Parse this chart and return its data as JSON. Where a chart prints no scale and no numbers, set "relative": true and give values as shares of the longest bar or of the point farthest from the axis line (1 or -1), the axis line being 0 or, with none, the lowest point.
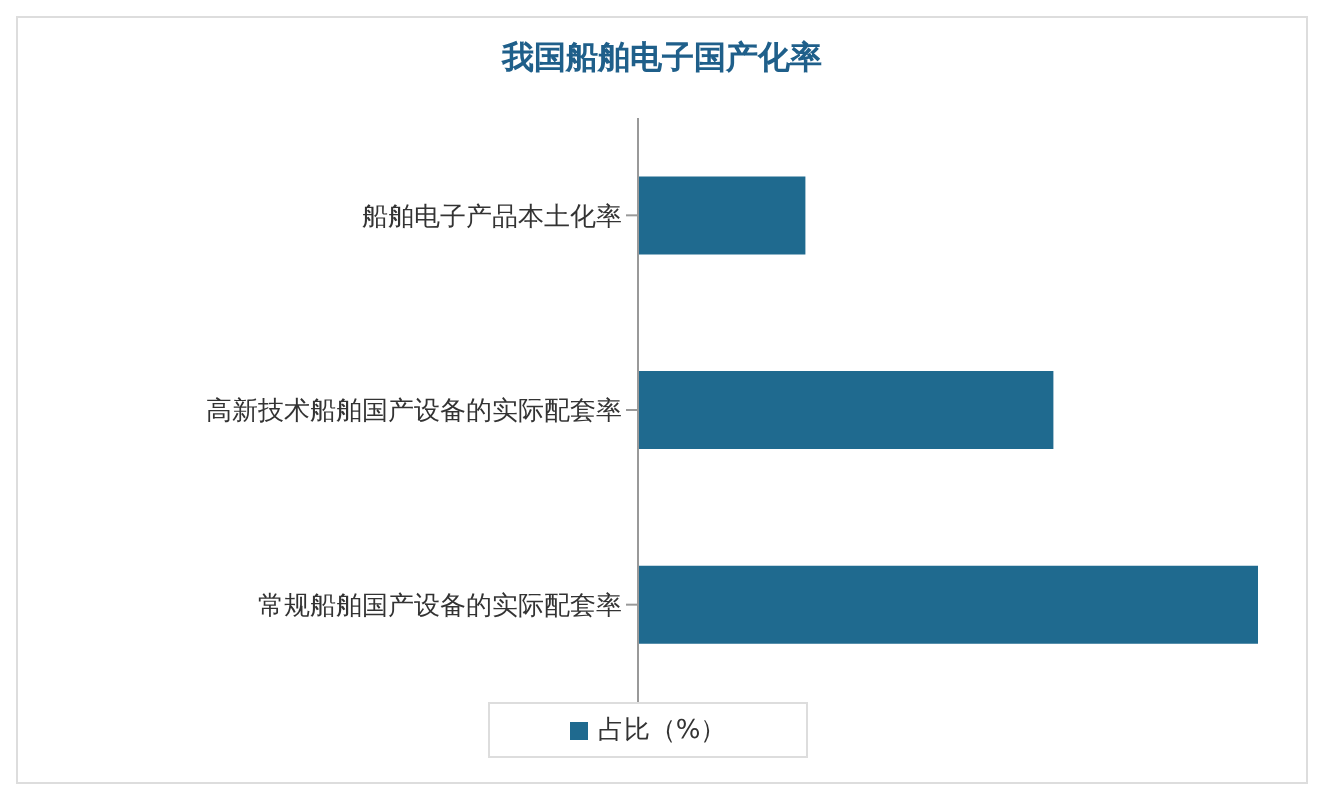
{
  "chart_data": {
    "type": "bar",
    "title": "我国船舶电子国产化率",
    "orientation": "horizontal",
    "relative": true,
    "categories": [
      "船舶电子产品本土化率",
      "高新技术船舶国产设备的实际配套率",
      "常规船舶国产设备的实际配套率"
    ],
    "series": [
      {
        "name": "占比（%）",
        "color": "#1f6a8f",
        "values": [
          0.27,
          0.67,
          1
        ]
      }
    ],
    "legend": "bottom"
  }
}
